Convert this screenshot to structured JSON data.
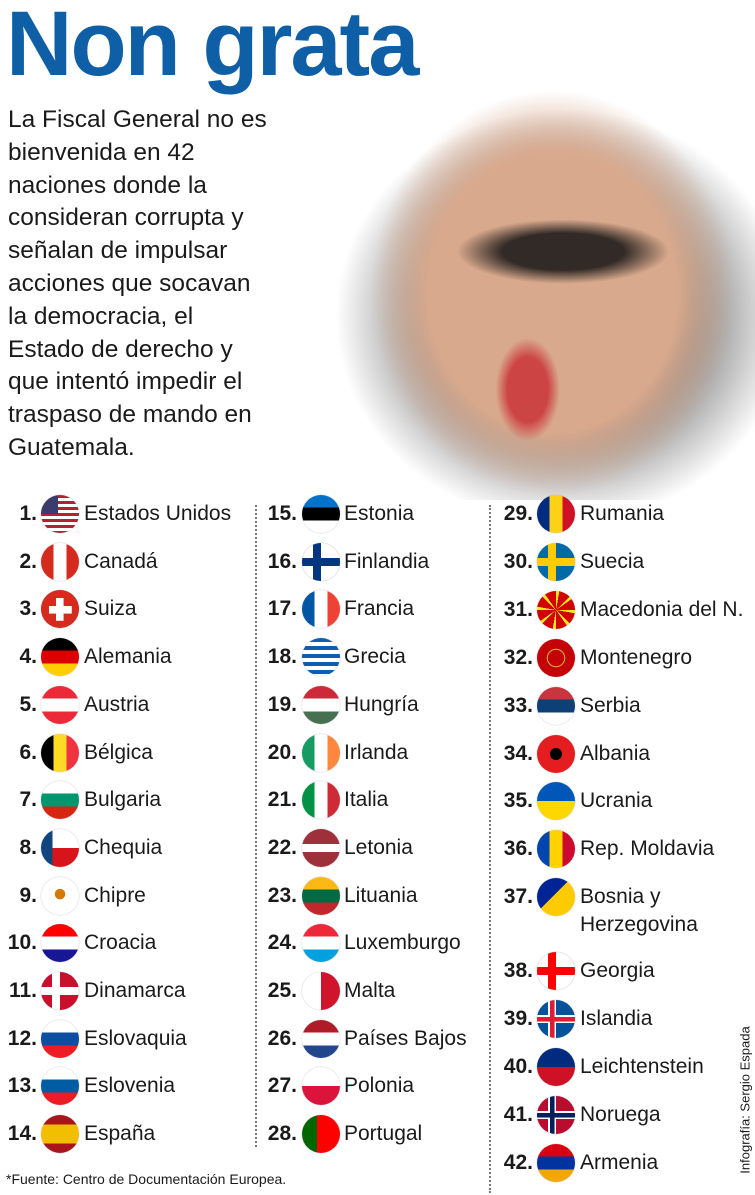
{
  "header": {
    "title": "Non grata",
    "description": "La Fiscal General no es bienvenida en 42 naciones donde la consideran corrupta y señalan de impulsar acciones que socavan la democracia, el Estado de derecho y que intentó impedir el traspaso de mando en Guatemala."
  },
  "countries": [
    {
      "number": "1.",
      "name": "Estados Unidos"
    },
    {
      "number": "2.",
      "name": "Canadá"
    },
    {
      "number": "3.",
      "name": "Suiza"
    },
    {
      "number": "4.",
      "name": "Alemania"
    },
    {
      "number": "5.",
      "name": "Austria"
    },
    {
      "number": "6.",
      "name": "Bélgica"
    },
    {
      "number": "7.",
      "name": "Bulgaria"
    },
    {
      "number": "8.",
      "name": "Chequia"
    },
    {
      "number": "9.",
      "name": "Chipre"
    },
    {
      "number": "10.",
      "name": "Croacia"
    },
    {
      "number": "11.",
      "name": "Dinamarca"
    },
    {
      "number": "12.",
      "name": "Eslovaquia"
    },
    {
      "number": "13.",
      "name": "Eslovenia"
    },
    {
      "number": "14.",
      "name": "España"
    },
    {
      "number": "15.",
      "name": "Estonia"
    },
    {
      "number": "16.",
      "name": "Finlandia"
    },
    {
      "number": "17.",
      "name": "Francia"
    },
    {
      "number": "18.",
      "name": "Grecia"
    },
    {
      "number": "19.",
      "name": "Hungría"
    },
    {
      "number": "20.",
      "name": "Irlanda"
    },
    {
      "number": "21.",
      "name": "Italia"
    },
    {
      "number": "22.",
      "name": "Letonia"
    },
    {
      "number": "23.",
      "name": "Lituania"
    },
    {
      "number": "24.",
      "name": "Luxemburgo"
    },
    {
      "number": "25.",
      "name": "Malta"
    },
    {
      "number": "26.",
      "name": "Países Bajos"
    },
    {
      "number": "27.",
      "name": "Polonia"
    },
    {
      "number": "28.",
      "name": "Portugal"
    },
    {
      "number": "29.",
      "name": "Rumania"
    },
    {
      "number": "30.",
      "name": "Suecia"
    },
    {
      "number": "31.",
      "name": "Macedonia del N."
    },
    {
      "number": "32.",
      "name": "Montenegro"
    },
    {
      "number": "33.",
      "name": "Serbia"
    },
    {
      "number": "34.",
      "name": "Albania"
    },
    {
      "number": "35.",
      "name": "Ucrania"
    },
    {
      "number": "36.",
      "name": "Rep. Moldavia"
    },
    {
      "number": "37.",
      "name": "Bosnia y Herzegovina"
    },
    {
      "number": "38.",
      "name": "Georgia"
    },
    {
      "number": "39.",
      "name": "Islandia"
    },
    {
      "number": "40.",
      "name": "Leichtenstein"
    },
    {
      "number": "41.",
      "name": "Noruega"
    },
    {
      "number": "42.",
      "name": "Armenia"
    }
  ],
  "footnote": "*Fuente: Centro de Documentación Europea.",
  "credit": "Infografía: Sergio Espada"
}
